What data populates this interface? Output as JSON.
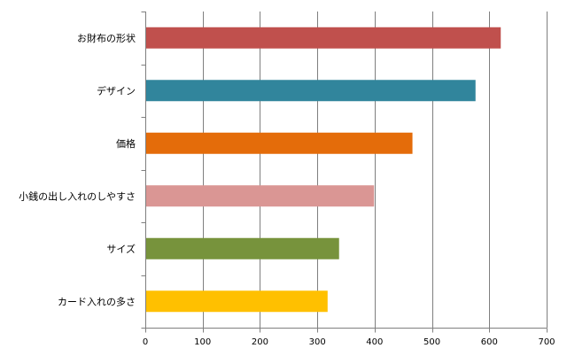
{
  "chart_data": {
    "type": "bar",
    "orientation": "horizontal",
    "categories": [
      "お財布の形状",
      "デザイン",
      "価格",
      "小銭の出し入れのしやすさ",
      "サイズ",
      "カード入れの多さ"
    ],
    "values": [
      620,
      576,
      466,
      399,
      338,
      318
    ],
    "colors": [
      "#C0504D",
      "#31859C",
      "#E46C0A",
      "#DA9694",
      "#77933C",
      "#FFC000"
    ],
    "xlim": [
      0,
      700
    ],
    "xticks": [
      0,
      100,
      200,
      300,
      400,
      500,
      600,
      700
    ],
    "grid": true
  }
}
